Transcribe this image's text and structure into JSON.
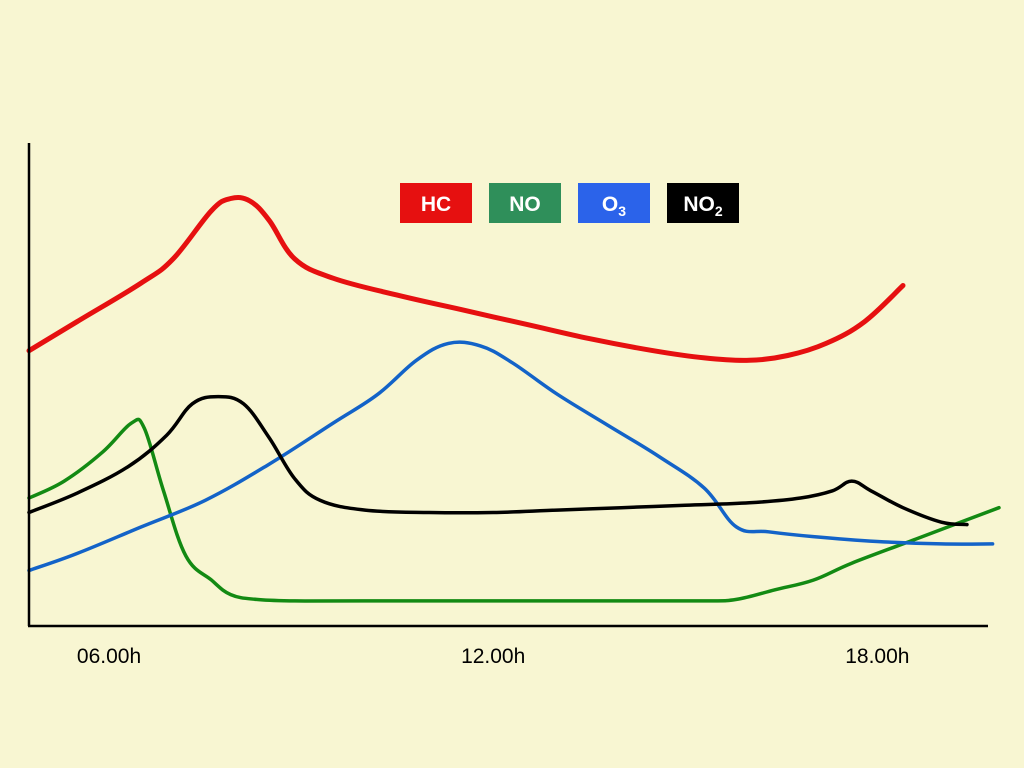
{
  "chart_data": {
    "type": "line",
    "title": "",
    "xlabel": "",
    "ylabel": "",
    "x_unit": "hour",
    "xlim": [
      4.75,
      19.9
    ],
    "ylim": [
      0,
      100
    ],
    "x_ticks": [
      {
        "x": 6,
        "label": "06.00h"
      },
      {
        "x": 12,
        "label": "12.00h"
      },
      {
        "x": 18,
        "label": "18.00h"
      }
    ],
    "grid": false,
    "legend_position": "top-center",
    "series": [
      {
        "name": "HC",
        "label_main": "HC",
        "label_sub": "",
        "color": "#e61010",
        "points": [
          [
            4.75,
            57
          ],
          [
            5.5,
            63
          ],
          [
            6.5,
            71
          ],
          [
            7.0,
            76
          ],
          [
            7.6,
            86
          ],
          [
            7.9,
            88.5
          ],
          [
            8.2,
            88
          ],
          [
            8.5,
            84
          ],
          [
            8.9,
            76
          ],
          [
            9.5,
            72
          ],
          [
            10.5,
            68.5
          ],
          [
            11.5,
            65.5
          ],
          [
            12.5,
            62.5
          ],
          [
            13.5,
            59.5
          ],
          [
            14.5,
            57
          ],
          [
            15.3,
            55.5
          ],
          [
            16.0,
            55
          ],
          [
            16.6,
            56
          ],
          [
            17.2,
            58.5
          ],
          [
            17.8,
            63
          ],
          [
            18.4,
            70.5
          ]
        ]
      },
      {
        "name": "NO",
        "label_main": "NO",
        "label_sub": "",
        "color": "#138a13",
        "points": [
          [
            4.75,
            26.5
          ],
          [
            5.3,
            30
          ],
          [
            5.9,
            36
          ],
          [
            6.35,
            42
          ],
          [
            6.55,
            41
          ],
          [
            6.85,
            28
          ],
          [
            7.2,
            14.5
          ],
          [
            7.6,
            9.5
          ],
          [
            7.9,
            6.5
          ],
          [
            8.3,
            5.5
          ],
          [
            8.9,
            5.2
          ],
          [
            10,
            5.2
          ],
          [
            12,
            5.2
          ],
          [
            14,
            5.2
          ],
          [
            15.3,
            5.2
          ],
          [
            15.8,
            5.5
          ],
          [
            16.4,
            7.5
          ],
          [
            17.0,
            9.5
          ],
          [
            17.6,
            13
          ],
          [
            18.6,
            18
          ],
          [
            19.4,
            22
          ],
          [
            19.9,
            24.5
          ]
        ]
      },
      {
        "name": "O3",
        "label_main": "O",
        "label_sub": "3",
        "color": "#1363c8",
        "points": [
          [
            4.75,
            11.5
          ],
          [
            5.5,
            15
          ],
          [
            6.5,
            20.5
          ],
          [
            7.5,
            26
          ],
          [
            8.5,
            33.5
          ],
          [
            9.5,
            42
          ],
          [
            10.2,
            48
          ],
          [
            10.8,
            55
          ],
          [
            11.3,
            58.5
          ],
          [
            11.8,
            58
          ],
          [
            12.3,
            54.5
          ],
          [
            13.0,
            48
          ],
          [
            13.8,
            41.5
          ],
          [
            14.6,
            35
          ],
          [
            15.3,
            28.5
          ],
          [
            15.8,
            20.5
          ],
          [
            16.3,
            19.5
          ],
          [
            17.0,
            18.5
          ],
          [
            18.0,
            17.5
          ],
          [
            19.0,
            17
          ],
          [
            19.8,
            17
          ]
        ]
      },
      {
        "name": "NO2",
        "label_main": "NO",
        "label_sub": "2",
        "color": "#000000",
        "points": [
          [
            4.75,
            23.5
          ],
          [
            5.5,
            27.5
          ],
          [
            6.3,
            33
          ],
          [
            6.9,
            39.5
          ],
          [
            7.3,
            46
          ],
          [
            7.7,
            47.5
          ],
          [
            8.1,
            46
          ],
          [
            8.5,
            39
          ],
          [
            8.9,
            30.5
          ],
          [
            9.3,
            26
          ],
          [
            10,
            24
          ],
          [
            11,
            23.5
          ],
          [
            12,
            23.5
          ],
          [
            13,
            24
          ],
          [
            14,
            24.5
          ],
          [
            15,
            25
          ],
          [
            16,
            25.5
          ],
          [
            16.8,
            26.5
          ],
          [
            17.3,
            28
          ],
          [
            17.6,
            30
          ],
          [
            17.9,
            28
          ],
          [
            18.4,
            24.5
          ],
          [
            19.0,
            21.5
          ],
          [
            19.4,
            21
          ]
        ]
      }
    ]
  }
}
